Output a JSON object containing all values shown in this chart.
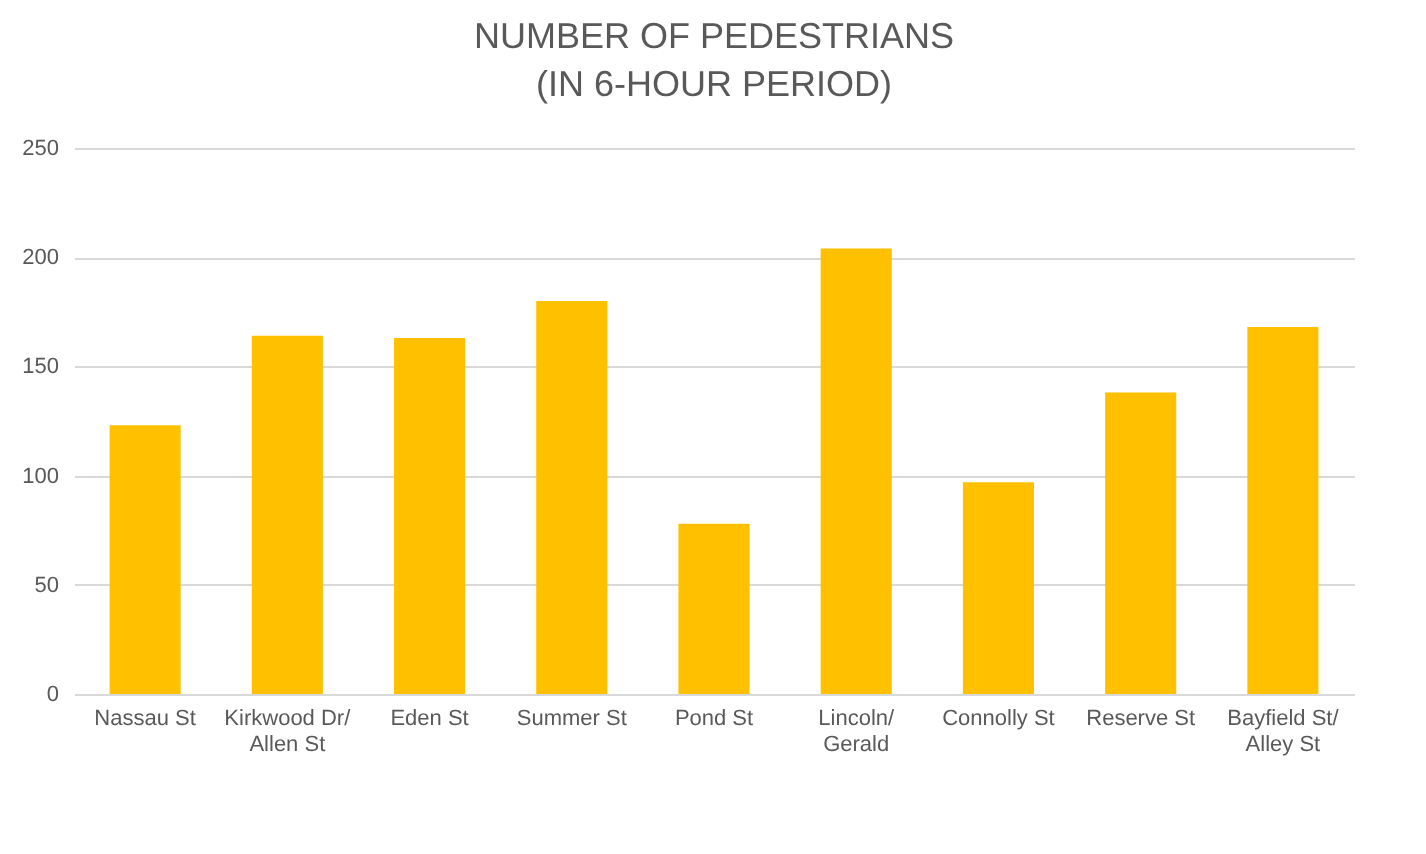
{
  "chart_data": {
    "type": "bar",
    "title": "NUMBER OF PEDESTRIANS\n(IN 6-HOUR PERIOD)",
    "categories": [
      "Nassau St",
      "Kirkwood Dr/ Allen St",
      "Eden St",
      "Summer St",
      "Pond St",
      "Lincoln/ Gerald",
      "Connolly St",
      "Reserve St",
      "Bayfield St/ Alley St"
    ],
    "values": [
      123,
      164,
      163,
      180,
      78,
      204,
      97,
      138,
      168
    ],
    "color": "#ffc000",
    "ylim": [
      0,
      250
    ],
    "yticks": [
      0,
      50,
      100,
      150,
      200,
      250
    ],
    "grid": "y"
  }
}
